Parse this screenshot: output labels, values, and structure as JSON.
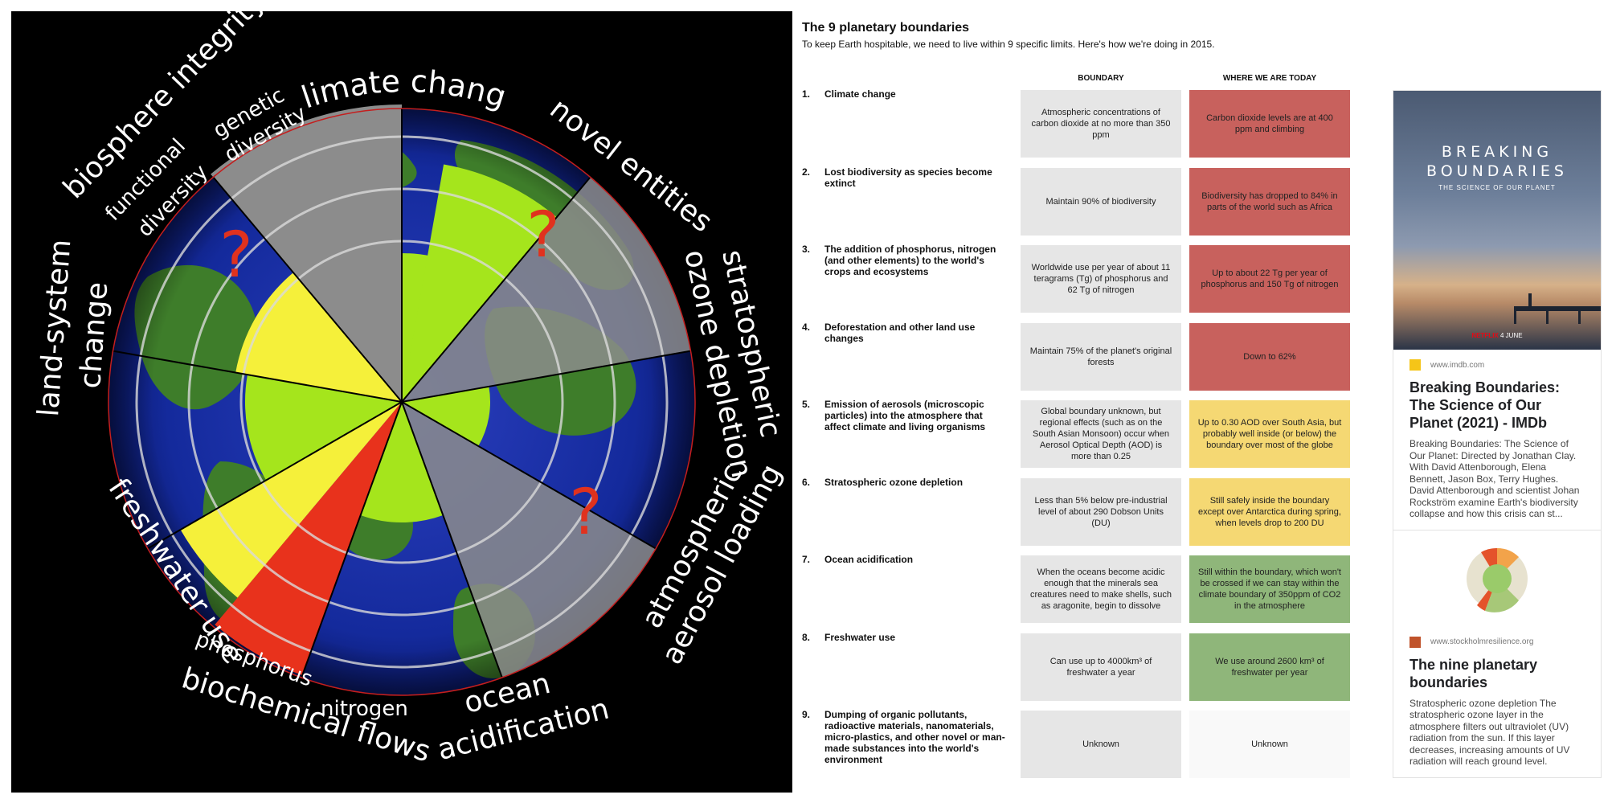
{
  "wheel": {
    "segments": [
      {
        "id": "biosphere-integrity",
        "label": "biosphere integrity",
        "sublabels": [
          "functional diversity",
          "genetic diversity"
        ]
      },
      {
        "id": "climate-change",
        "label": "climate change"
      },
      {
        "id": "novel-entities",
        "label": "novel entities"
      },
      {
        "id": "stratospheric-ozone",
        "label_lines": [
          "stratospheric",
          "ozone depletion"
        ]
      },
      {
        "id": "atmospheric-aerosol",
        "label_lines": [
          "atmospheric",
          "aerosol loading"
        ]
      },
      {
        "id": "ocean-acidification",
        "label_lines": [
          "ocean",
          "acidification"
        ]
      },
      {
        "id": "biochemical-flows",
        "label": "biochemical flows",
        "sublabels": [
          "phosphorus",
          "nitrogen"
        ]
      },
      {
        "id": "freshwater-use",
        "label": "freshwater use"
      },
      {
        "id": "land-system-change",
        "label_lines": [
          "land-system",
          "change"
        ]
      }
    ],
    "unknown_mark": "?",
    "colors": {
      "safe": "#a5e51c",
      "increasing": "#f5f03a",
      "high": "#e8321c",
      "unknown": "#8c8c8c"
    }
  },
  "table": {
    "title": "The 9 planetary boundaries",
    "subtitle": "To keep Earth hospitable, we need to live within 9 specific limits. Here's how we're doing in 2015.",
    "col_boundary": "BOUNDARY",
    "col_today": "WHERE WE ARE TODAY",
    "rows": [
      {
        "num": "1.",
        "label": "Climate change",
        "boundary": "Atmospheric concentrations of carbon dioxide at no more than 350 ppm",
        "today": "Carbon dioxide levels are at 400 ppm and climbing",
        "status": "red"
      },
      {
        "num": "2.",
        "label": "Lost biodiversity as species become extinct",
        "boundary": "Maintain 90% of biodiversity",
        "today": "Biodiversity has dropped to 84% in parts of the world such as Africa",
        "status": "red"
      },
      {
        "num": "3.",
        "label": "The addition of phosphorus, nitrogen (and other elements) to the world's crops and ecosystems",
        "boundary": "Worldwide use per year of about 11 teragrams (Tg) of phosphorus and 62 Tg of nitrogen",
        "today": "Up to about 22 Tg per year of phosphorus and 150 Tg of nitrogen",
        "status": "red"
      },
      {
        "num": "4.",
        "label": "Deforestation and other land use changes",
        "boundary": "Maintain 75% of the planet's original forests",
        "today": "Down to 62%",
        "status": "red"
      },
      {
        "num": "5.",
        "label": "Emission of aerosols (microscopic particles) into the atmosphere that affect climate and living organisms",
        "boundary": "Global boundary unknown, but regional effects (such as on the South Asian Monsoon) occur when Aerosol Optical Depth (AOD) is more than 0.25",
        "today": "Up to 0.30 AOD over South Asia, but probably well inside (or below) the boundary over most of the globe",
        "status": "yellow"
      },
      {
        "num": "6.",
        "label": "Stratospheric ozone depletion",
        "boundary": "Less than 5% below pre-industrial level of about 290 Dobson Units (DU)",
        "today": "Still safely inside the boundary except over Antarctica during spring, when levels drop to 200 DU",
        "status": "yellow"
      },
      {
        "num": "7.",
        "label": "Ocean acidification",
        "boundary": "When the oceans become acidic enough that the minerals sea creatures need to make shells, such as aragonite, begin to dissolve",
        "today": "Still within the boundary, which won't be crossed if we can stay within the climate boundary of 350ppm of CO2 in the atmosphere",
        "status": "green"
      },
      {
        "num": "8.",
        "label": "Freshwater use",
        "boundary": "Can use up to 4000km³ of freshwater a year",
        "today": "We use around 2600 km³ of freshwater per year",
        "status": "green"
      },
      {
        "num": "9.",
        "label": "Dumping of organic pollutants, radioactive materials, nanomaterials, micro-plastics, and other novel or man-made substances into the world's environment",
        "boundary": "Unknown",
        "today": "Unknown",
        "status": "none"
      }
    ],
    "status_colors": {
      "red": "#c8615d",
      "yellow": "#f5d873",
      "green": "#8fb67a",
      "none": "#f9f9f9",
      "boundary": "#e6e6e6"
    }
  },
  "results": [
    {
      "poster_title": "BREAKING BOUNDARIES",
      "poster_sub": "THE SCIENCE OF OUR PLANET",
      "poster_brand": "NETFLIX",
      "poster_date": "4 JUNE",
      "source": "www.imdb.com",
      "title": "Breaking Boundaries: The Science of Our Planet (2021) - IMDb",
      "text": "Breaking Boundaries: The Science of Our Planet: Directed by Jonathan Clay. With David Attenborough, Elena Bennett, Jason Box, Terry Hughes. David Attenborough and scientist Johan Rockström examine Earth's biodiversity collapse and how this crisis can st...",
      "fav_color": "#f5c518"
    },
    {
      "source": "www.stockholmresilience.org",
      "title": "The nine planetary boundaries",
      "text": "Stratospheric ozone depletion The stratospheric ozone layer in the atmosphere filters out ultraviolet (UV) radiation from the sun. If this layer decreases, increasing amounts of UV radiation will reach ground level.",
      "fav_color": "#c0532b"
    }
  ]
}
